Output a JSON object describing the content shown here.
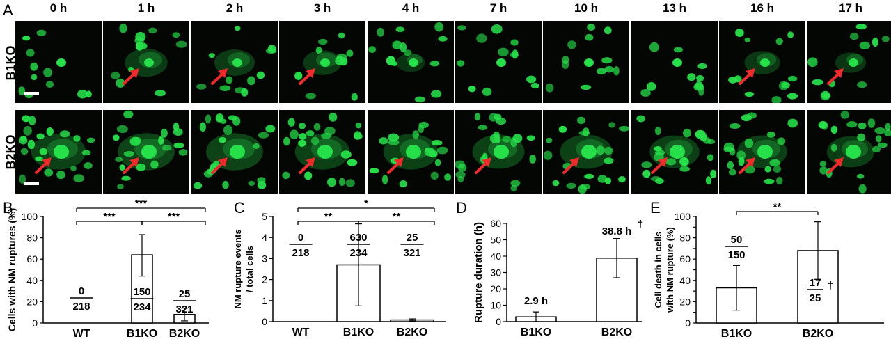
{
  "panel_letters": [
    "A",
    "B",
    "C",
    "D",
    "E"
  ],
  "time_points": [
    "0 h",
    "1 h",
    "2 h",
    "3 h",
    "4 h",
    "7 h",
    "10 h",
    "13 h",
    "16 h",
    "17 h"
  ],
  "row_labels": [
    "B1KO",
    "B2KO"
  ],
  "colors": {
    "nucleus": "#26e04a",
    "arrow": "#ee2a2a",
    "background": "#030603"
  },
  "chart_data": [
    {
      "id": "B",
      "type": "bar",
      "categories": [
        "WT",
        "B1KO",
        "B2KO"
      ],
      "values": [
        0,
        64,
        8
      ],
      "error_plus": [
        0,
        19,
        6
      ],
      "error_minus": [
        0,
        20,
        6
      ],
      "ylabel": "Cells with NM ruptures (%)",
      "ylim": [
        0,
        100
      ],
      "yticks": [
        0,
        20,
        40,
        60,
        80,
        100
      ],
      "fractions": [
        [
          "0",
          "218"
        ],
        [
          "150",
          "234"
        ],
        [
          "25",
          "321"
        ]
      ],
      "significance": [
        {
          "from": "WT",
          "to": "B2KO",
          "label": "***"
        },
        {
          "from": "WT",
          "to": "B1KO",
          "label": "***"
        },
        {
          "from": "B1KO",
          "to": "B2KO",
          "label": "***"
        }
      ]
    },
    {
      "id": "C",
      "type": "bar",
      "categories": [
        "WT",
        "B1KO",
        "B2KO"
      ],
      "values": [
        0,
        2.7,
        0.08
      ],
      "error_plus": [
        0,
        1.95,
        0.05
      ],
      "error_minus": [
        0,
        1.95,
        0.05
      ],
      "ylabel": "NM rupture events / total cells",
      "ylabel_lines": [
        "NM rupture events",
        "/ total cells"
      ],
      "ylim": [
        0,
        5
      ],
      "yticks": [
        0,
        1,
        2,
        3,
        4,
        5
      ],
      "fractions": [
        [
          "0",
          "218"
        ],
        [
          "630",
          "234"
        ],
        [
          "25",
          "321"
        ]
      ],
      "significance": [
        {
          "from": "WT",
          "to": "B2KO",
          "label": "*"
        },
        {
          "from": "WT",
          "to": "B1KO",
          "label": "**"
        },
        {
          "from": "B1KO",
          "to": "B2KO",
          "label": "**"
        }
      ]
    },
    {
      "id": "D",
      "type": "bar",
      "categories": [
        "B1KO",
        "B2KO"
      ],
      "values": [
        2.9,
        38.8
      ],
      "error_plus": [
        3,
        12
      ],
      "error_minus": [
        2.9,
        12
      ],
      "ylabel": "Rupture duration (h)",
      "ylim": [
        0,
        60
      ],
      "yticks": [
        0,
        10,
        20,
        30,
        40,
        50,
        60
      ],
      "value_labels": [
        "2.9 h",
        "38.8 h"
      ],
      "dagger": "†"
    },
    {
      "id": "E",
      "type": "bar",
      "categories": [
        "B1KO",
        "B2KO"
      ],
      "values": [
        33,
        68
      ],
      "error_plus": [
        21,
        27
      ],
      "error_minus": [
        21,
        27
      ],
      "ylabel": "Cell death in cells with NM rupture (%)",
      "ylabel_lines": [
        "Cell death in cells",
        "with NM rupture (%)"
      ],
      "ylim": [
        0,
        100
      ],
      "yticks": [
        0,
        10,
        20,
        30,
        40,
        50,
        60,
        70,
        80,
        90,
        100
      ],
      "fractions": [
        [
          "50",
          "150"
        ],
        [
          "17",
          "25"
        ]
      ],
      "dagger": "†",
      "significance": [
        {
          "from": "B1KO",
          "to": "B2KO",
          "label": "**"
        }
      ]
    }
  ]
}
